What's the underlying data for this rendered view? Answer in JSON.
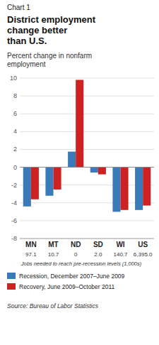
{
  "chart_data": {
    "type": "bar",
    "chart_number": "Chart 1",
    "title": "District employment\nchange better\nthan U.S.",
    "subtitle": "Percent change in nonfarm\nemployment",
    "categories": [
      "MN",
      "MT",
      "ND",
      "SD",
      "WI",
      "US"
    ],
    "series": [
      {
        "name": "Recession, December 2007–June 2009",
        "color": "#3a7ab8",
        "values": [
          -4.4,
          -3.2,
          1.75,
          -0.6,
          -5.0,
          -4.8
        ]
      },
      {
        "name": "Recovery, June 2009–October 2011",
        "color": "#cc2222",
        "values": [
          -3.6,
          -2.5,
          9.8,
          -0.8,
          -4.8,
          -4.3
        ]
      }
    ],
    "category_notes": [
      "97.1",
      "10.7",
      "0",
      "2.0",
      "140.7",
      "6,395.0"
    ],
    "category_notes_caption": "Jobs needed to reach pre-recession levels (1,000s)",
    "source": "Source: Bureau of Labor Statistics",
    "ylim": [
      -8,
      10
    ],
    "yticks": [
      -8,
      -6,
      -4,
      -2,
      0,
      2,
      4,
      6,
      8,
      10
    ],
    "grid": true,
    "legend": "bottom"
  }
}
